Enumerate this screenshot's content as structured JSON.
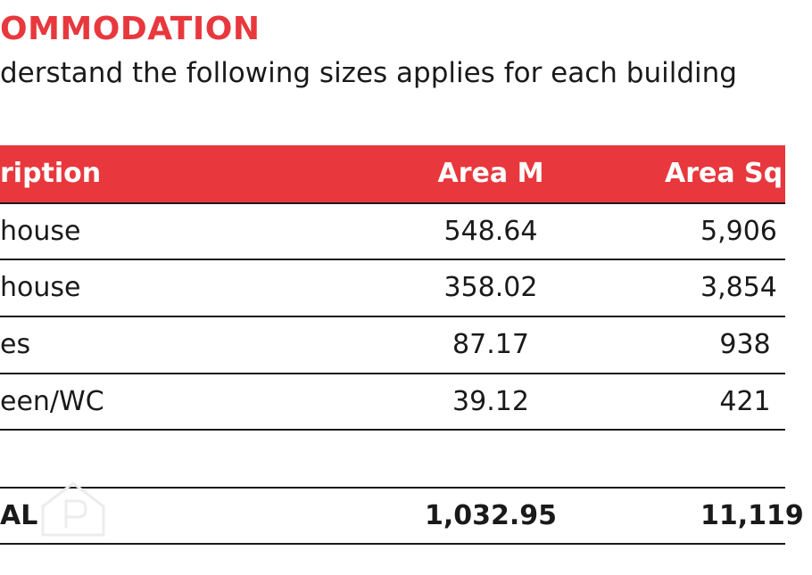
{
  "header": {
    "title": "OMMODATION",
    "subtitle": "derstand the following sizes applies for each building"
  },
  "table": {
    "columns": [
      "ription",
      "Area M",
      "Area Sq"
    ],
    "rows": [
      [
        "house",
        "548.64",
        "5,906"
      ],
      [
        "house",
        "358.02",
        "3,854"
      ],
      [
        "es",
        "87.17",
        "938"
      ],
      [
        "een/WC",
        "39.12",
        "421"
      ]
    ],
    "total": [
      "AL",
      "1,032.95",
      "11,119"
    ]
  }
}
